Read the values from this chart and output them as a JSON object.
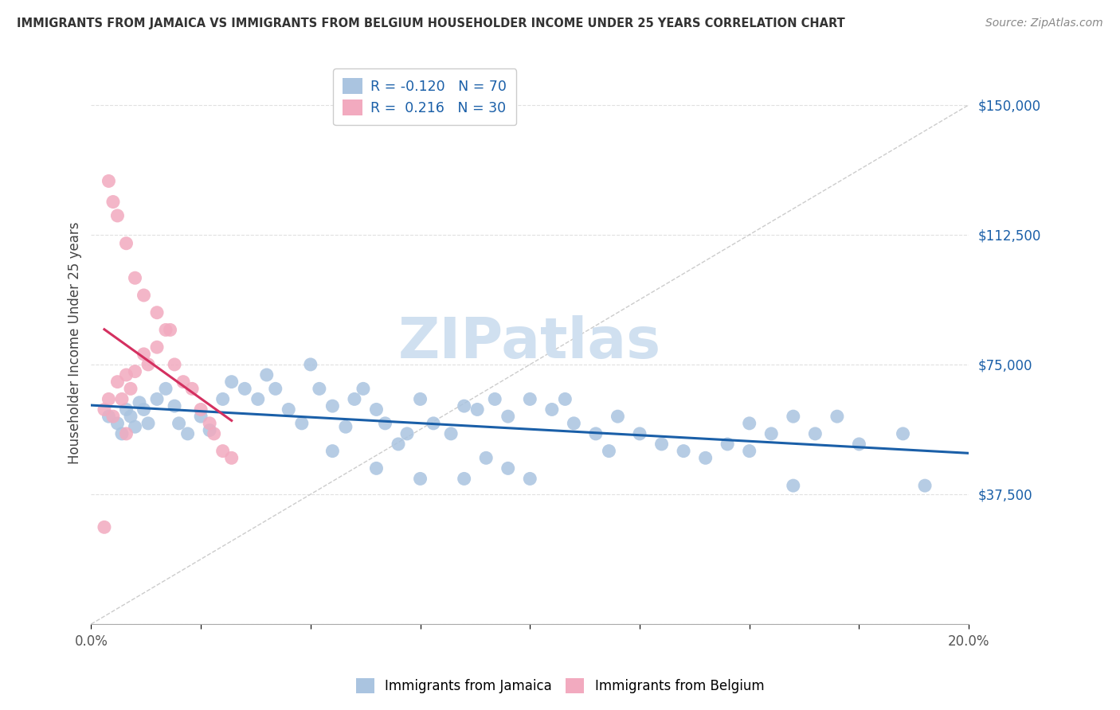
{
  "title": "IMMIGRANTS FROM JAMAICA VS IMMIGRANTS FROM BELGIUM HOUSEHOLDER INCOME UNDER 25 YEARS CORRELATION CHART",
  "source": "Source: ZipAtlas.com",
  "ylabel": "Householder Income Under 25 years",
  "xlim": [
    0.0,
    0.2
  ],
  "ylim": [
    0,
    162500
  ],
  "yticks": [
    0,
    37500,
    75000,
    112500,
    150000
  ],
  "ytick_labels": [
    "",
    "$37,500",
    "$75,000",
    "$112,500",
    "$150,000"
  ],
  "xticks": [
    0.0,
    0.025,
    0.05,
    0.075,
    0.1,
    0.125,
    0.15,
    0.175,
    0.2
  ],
  "legend_R_jamaica": "-0.120",
  "legend_N_jamaica": "70",
  "legend_R_belgium": "0.216",
  "legend_N_belgium": "30",
  "jamaica_color": "#aac4e0",
  "belgium_color": "#f2aabf",
  "jamaica_line_color": "#1a5fa8",
  "belgium_line_color": "#d43060",
  "background_color": "#ffffff",
  "watermark_color": "#d0e0f0",
  "grid_color": "#e0e0e0",
  "jamaica_x": [
    0.004,
    0.006,
    0.007,
    0.008,
    0.009,
    0.01,
    0.011,
    0.012,
    0.013,
    0.015,
    0.017,
    0.019,
    0.02,
    0.022,
    0.025,
    0.027,
    0.03,
    0.032,
    0.035,
    0.038,
    0.04,
    0.042,
    0.045,
    0.048,
    0.05,
    0.052,
    0.055,
    0.058,
    0.06,
    0.062,
    0.065,
    0.067,
    0.07,
    0.072,
    0.075,
    0.078,
    0.082,
    0.085,
    0.088,
    0.092,
    0.095,
    0.1,
    0.105,
    0.108,
    0.11,
    0.115,
    0.118,
    0.12,
    0.125,
    0.13,
    0.135,
    0.14,
    0.145,
    0.15,
    0.155,
    0.16,
    0.165,
    0.17,
    0.175,
    0.185,
    0.055,
    0.065,
    0.075,
    0.085,
    0.09,
    0.095,
    0.1,
    0.15,
    0.16,
    0.19
  ],
  "jamaica_y": [
    60000,
    58000,
    55000,
    62000,
    60000,
    57000,
    64000,
    62000,
    58000,
    65000,
    68000,
    63000,
    58000,
    55000,
    60000,
    56000,
    65000,
    70000,
    68000,
    65000,
    72000,
    68000,
    62000,
    58000,
    75000,
    68000,
    63000,
    57000,
    65000,
    68000,
    62000,
    58000,
    52000,
    55000,
    65000,
    58000,
    55000,
    63000,
    62000,
    65000,
    60000,
    65000,
    62000,
    65000,
    58000,
    55000,
    50000,
    60000,
    55000,
    52000,
    50000,
    48000,
    52000,
    58000,
    55000,
    60000,
    55000,
    60000,
    52000,
    55000,
    50000,
    45000,
    42000,
    42000,
    48000,
    45000,
    42000,
    50000,
    40000,
    40000
  ],
  "belgium_x": [
    0.003,
    0.004,
    0.005,
    0.006,
    0.007,
    0.008,
    0.009,
    0.01,
    0.012,
    0.013,
    0.015,
    0.017,
    0.019,
    0.021,
    0.023,
    0.025,
    0.027,
    0.028,
    0.03,
    0.032,
    0.004,
    0.005,
    0.006,
    0.008,
    0.01,
    0.012,
    0.015,
    0.018,
    0.003,
    0.008
  ],
  "belgium_y": [
    62000,
    65000,
    60000,
    70000,
    65000,
    72000,
    68000,
    73000,
    78000,
    75000,
    80000,
    85000,
    75000,
    70000,
    68000,
    62000,
    58000,
    55000,
    50000,
    48000,
    128000,
    122000,
    118000,
    110000,
    100000,
    95000,
    90000,
    85000,
    28000,
    55000
  ]
}
